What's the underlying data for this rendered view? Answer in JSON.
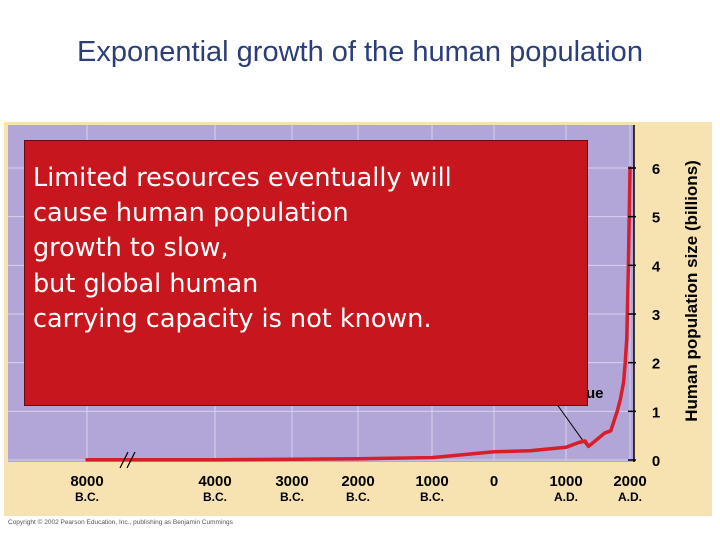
{
  "title": "Exponential growth of the human population",
  "callout": {
    "text": "Limited resources eventually will\ncause human population\ngrowth to slow,\nbut global human\ncarrying capacity is not known.",
    "hidden_label_fragment": "ue"
  },
  "copyright": "Copyright © 2002 Pearson Education, Inc., publishing as Benjamin Cummings",
  "chart_data": {
    "type": "line",
    "title": "",
    "xlabel": "",
    "ylabel": "Human population size (billions)",
    "y_axis_side": "right",
    "ylim": [
      0,
      6.5
    ],
    "y_ticks": [
      0,
      1,
      2,
      3,
      4,
      5,
      6
    ],
    "x_ticks": [
      {
        "value": -8000,
        "year": "8000",
        "era": "B.C."
      },
      {
        "value": -4000,
        "year": "4000",
        "era": "B.C."
      },
      {
        "value": -3000,
        "year": "3000",
        "era": "B.C."
      },
      {
        "value": -2000,
        "year": "2000",
        "era": "B.C."
      },
      {
        "value": -1000,
        "year": "1000",
        "era": "B.C."
      },
      {
        "value": 0,
        "year": "0",
        "era": ""
      },
      {
        "value": 1000,
        "year": "1000",
        "era": "A.D."
      },
      {
        "value": 2000,
        "year": "2000",
        "era": "A.D."
      }
    ],
    "axis_break": true,
    "grid": true,
    "colors": {
      "plot_background": "#b2a6d9",
      "grid": "#d8d2ef",
      "line": "#d81e28",
      "frame": "#f7e3b2",
      "tick": "#000000"
    },
    "series": [
      {
        "name": "",
        "x": [
          -8000,
          -4000,
          -3000,
          -2000,
          -1000,
          0,
          500,
          1000,
          1200,
          1300,
          1350,
          1400,
          1500,
          1600,
          1700,
          1750,
          1800,
          1850,
          1900,
          1925,
          1950,
          1975,
          2000
        ],
        "y": [
          0.005,
          0.007,
          0.014,
          0.027,
          0.05,
          0.17,
          0.19,
          0.26,
          0.36,
          0.39,
          0.28,
          0.33,
          0.44,
          0.55,
          0.6,
          0.8,
          1.0,
          1.25,
          1.6,
          2.0,
          2.5,
          4.0,
          6.0
        ]
      }
    ],
    "annotations": [
      {
        "text": "Bubonic plague",
        "x": 1350,
        "pointer_to_curve": true
      }
    ]
  }
}
